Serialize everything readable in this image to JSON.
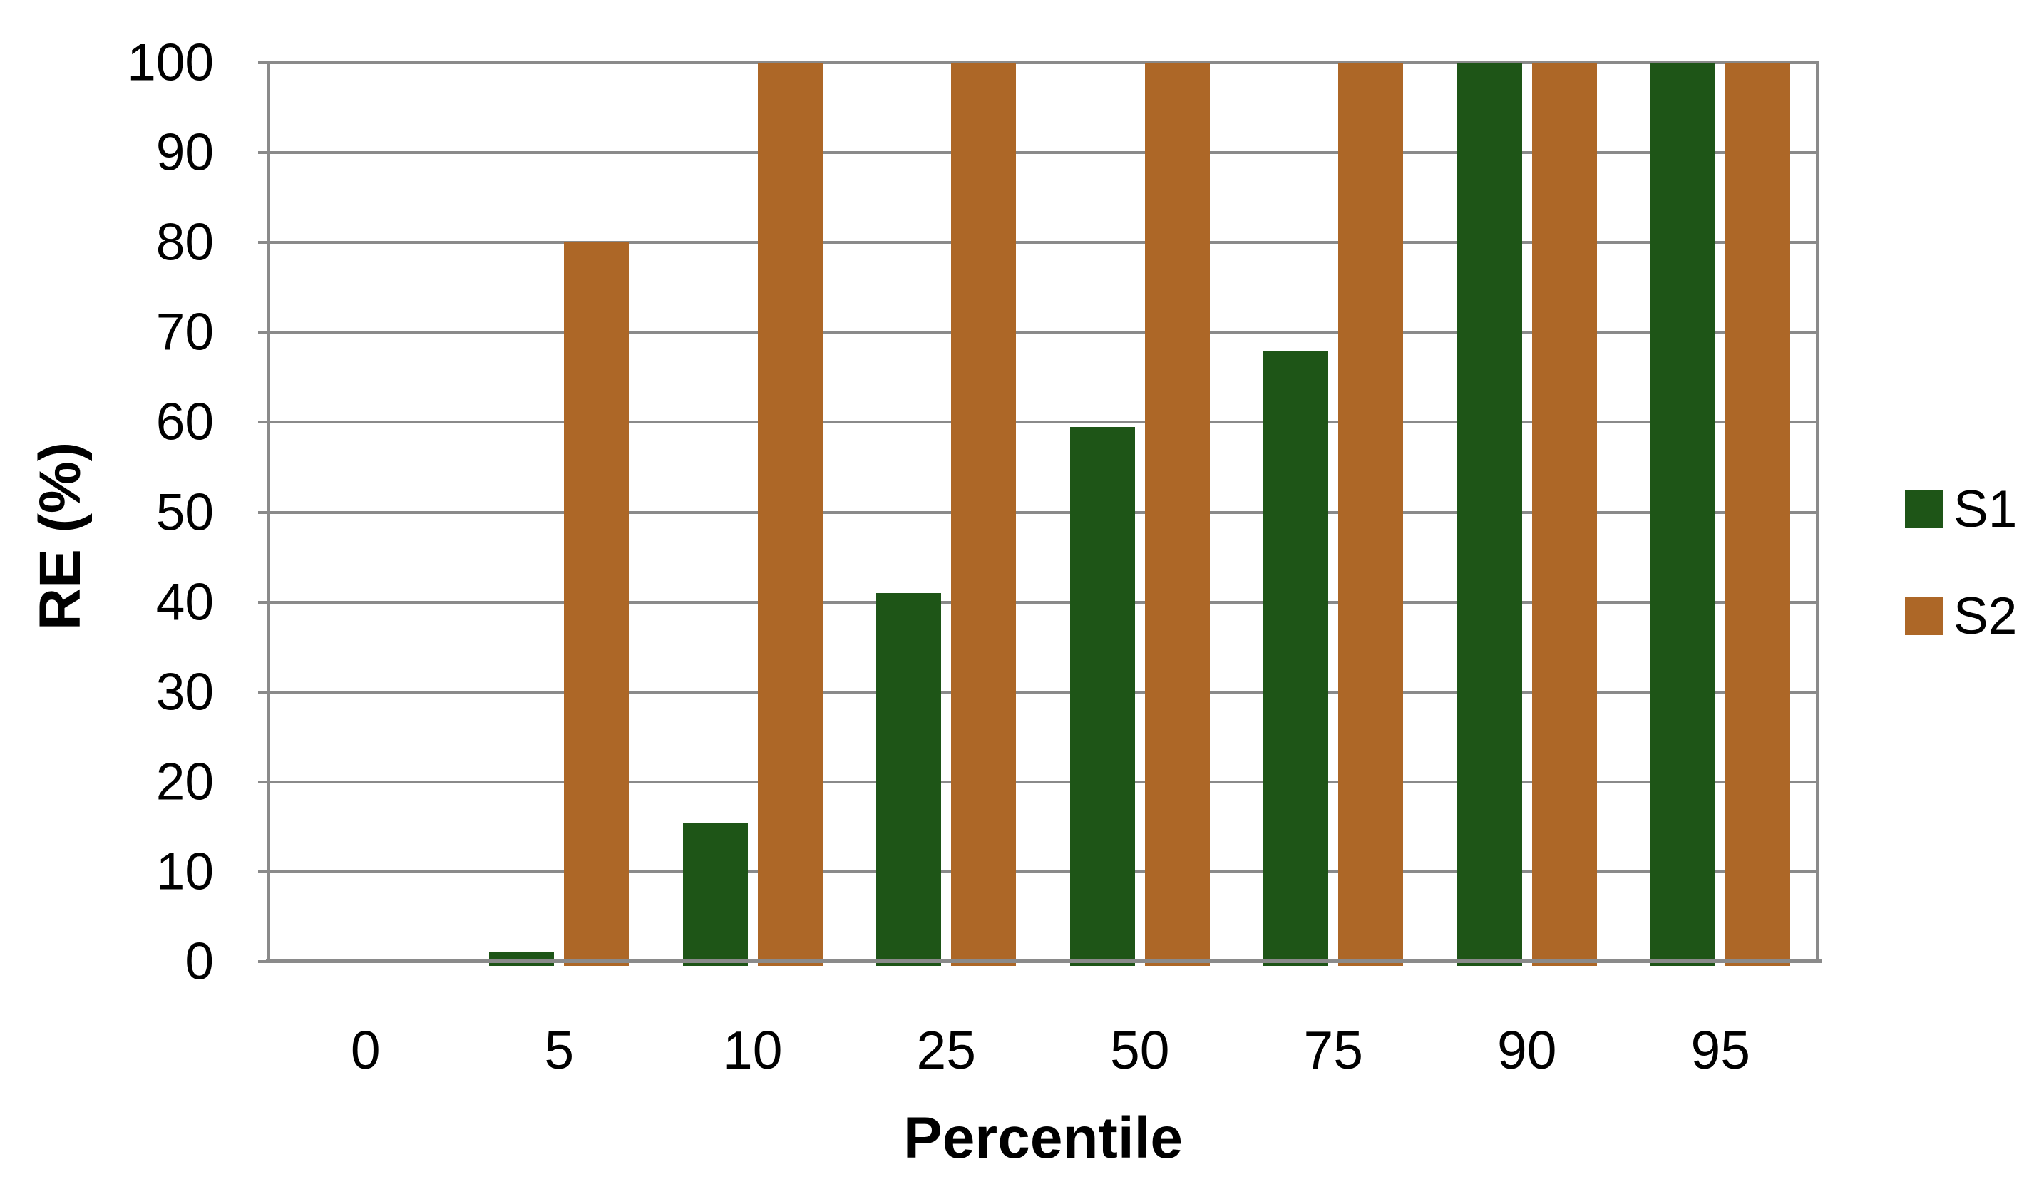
{
  "chart_data": {
    "type": "bar",
    "title": "",
    "categories": [
      "0",
      "5",
      "10",
      "25",
      "50",
      "75",
      "90",
      "95"
    ],
    "series": [
      {
        "name": "S1",
        "color": "#1E5517",
        "values": [
          0,
          1,
          15.5,
          41,
          59.5,
          68,
          100,
          100
        ]
      },
      {
        "name": "S2",
        "color": "#AD6727",
        "values": [
          0,
          80,
          100,
          100,
          100,
          100,
          100,
          100
        ]
      }
    ],
    "xlabel": "Percentile",
    "ylabel": "RE (%)",
    "ylim": [
      0,
      100
    ],
    "y_ticks": [
      0,
      10,
      20,
      30,
      40,
      50,
      60,
      70,
      80,
      90,
      100
    ],
    "grid": true,
    "legend_position": "right"
  },
  "colors": {
    "gridline": "#8A8A8A",
    "axis": "#8A8A8A",
    "text": "#000000",
    "background": "#FFFFFF"
  }
}
